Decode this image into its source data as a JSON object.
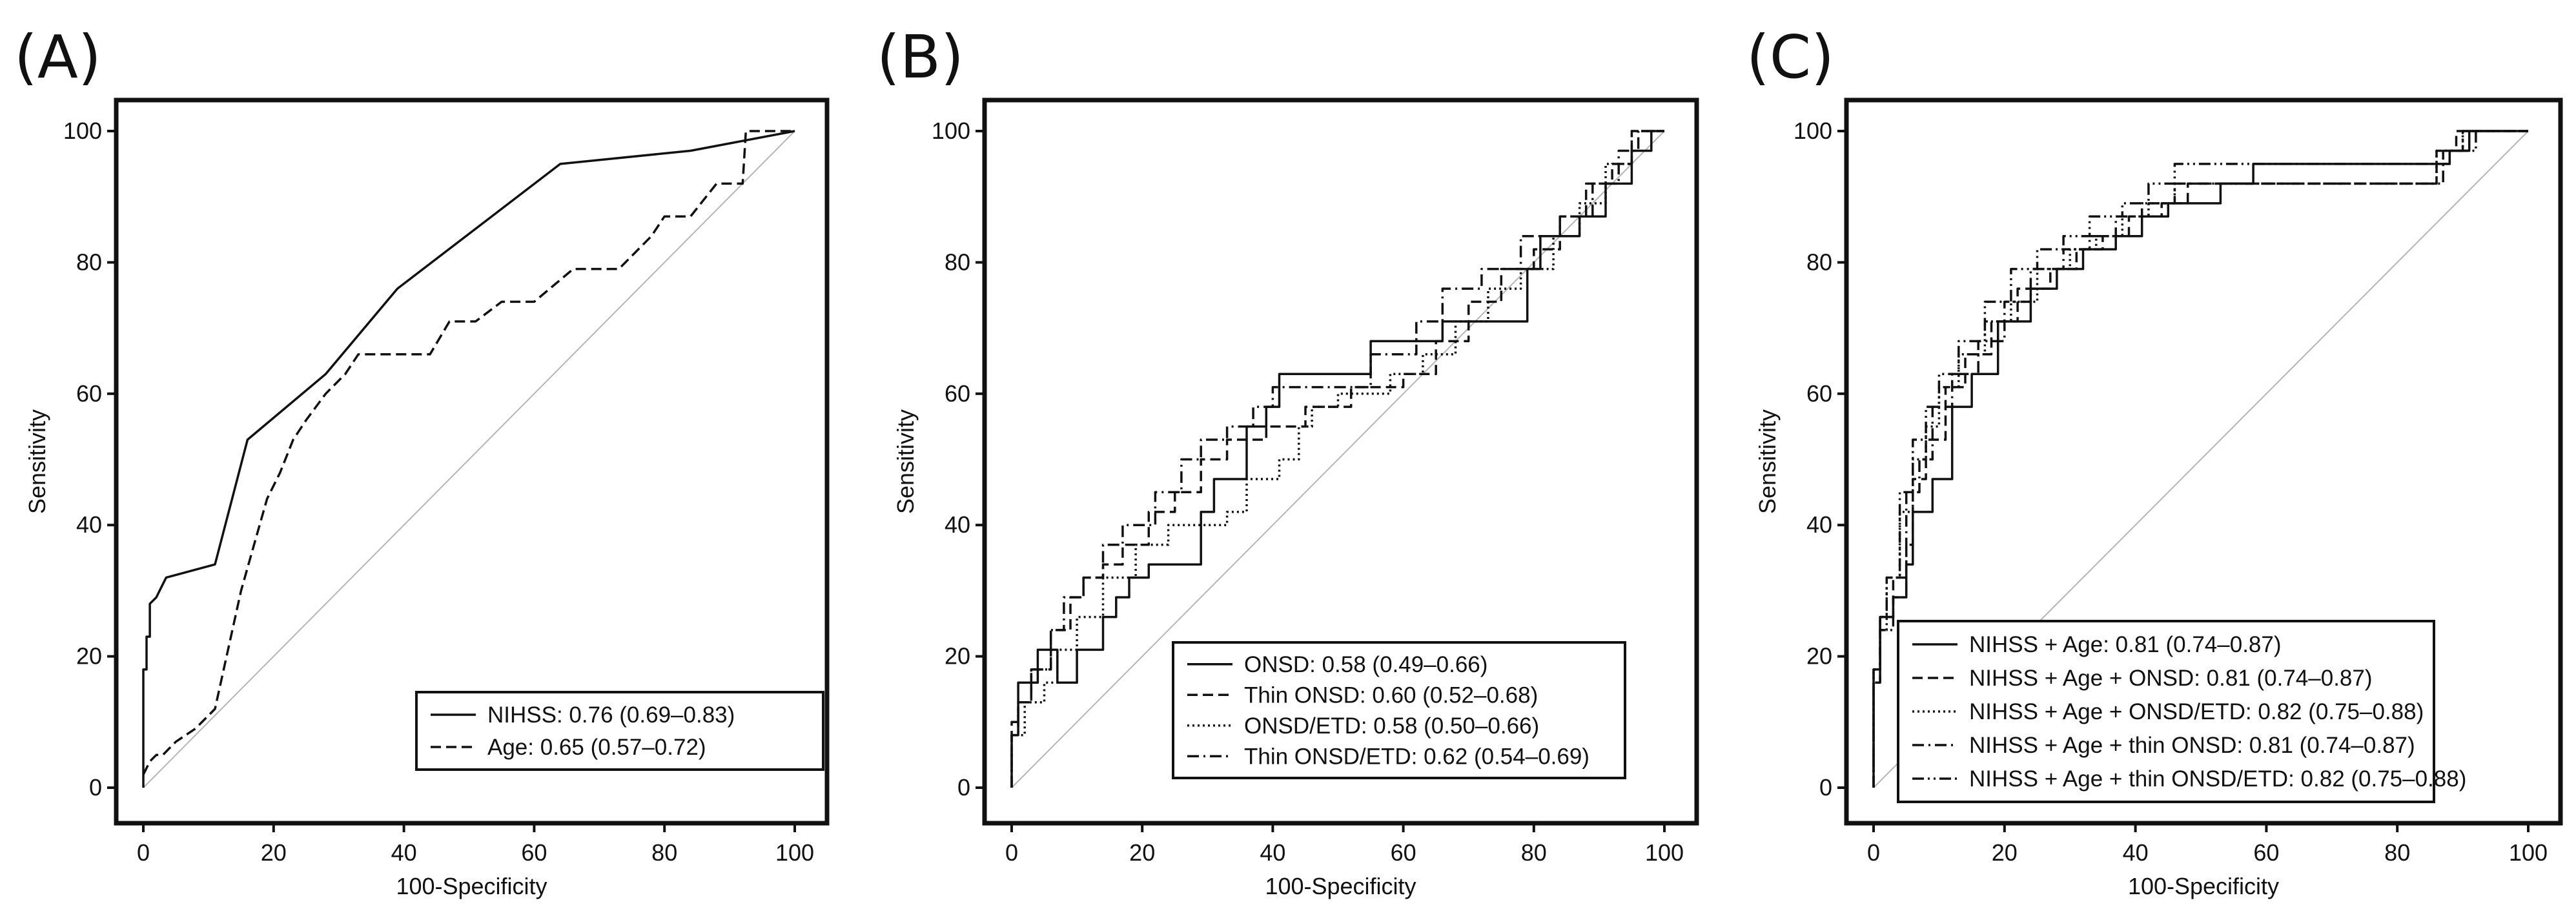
{
  "chart_data": [
    {
      "type": "line",
      "panel_label": "(A)",
      "xlabel": "100-Specificity",
      "ylabel": "Sensitivity",
      "xlim": [
        0,
        100
      ],
      "ylim": [
        0,
        100
      ],
      "xticks": [
        "0",
        "20",
        "40",
        "60",
        "80",
        "100"
      ],
      "yticks": [
        "0",
        "20",
        "40",
        "60",
        "80",
        "100"
      ],
      "legend_position": "bottom-right",
      "diagonal_reference": true,
      "series": [
        {
          "name": "NIHSS",
          "auc_label": "NIHSS: 0.76 (0.69–0.83)",
          "style": "solid",
          "x": [
            0,
            0,
            0.5,
            0.5,
            1,
            1,
            2,
            2.5,
            3,
            3.5,
            11,
            16,
            28,
            39,
            64,
            84,
            100
          ],
          "y": [
            0,
            18,
            18,
            23,
            23,
            28,
            29,
            30,
            31,
            32,
            34,
            53,
            63,
            76,
            95,
            97,
            100
          ]
        },
        {
          "name": "Age",
          "auc_label": "Age: 0.65 (0.57–0.72)",
          "style": "dashed",
          "x": [
            0,
            1,
            2,
            3,
            5,
            8,
            11,
            13,
            15,
            17,
            19,
            21,
            23,
            25,
            28,
            31,
            33,
            44,
            47,
            51,
            55,
            60,
            66,
            73,
            78,
            80,
            84,
            88,
            92,
            92.5,
            97,
            100
          ],
          "y": [
            2,
            4,
            5,
            5,
            7,
            9,
            12,
            21,
            30,
            37,
            44,
            48,
            53,
            56,
            60,
            63,
            66,
            66,
            71,
            71,
            74,
            74,
            79,
            79,
            84,
            87,
            87,
            92,
            92,
            100,
            100,
            100
          ]
        }
      ]
    },
    {
      "type": "line",
      "panel_label": "(B)",
      "xlabel": "100-Specificity",
      "ylabel": "Sensitivity",
      "xlim": [
        0,
        100
      ],
      "ylim": [
        0,
        100
      ],
      "xticks": [
        "0",
        "20",
        "40",
        "60",
        "80",
        "100"
      ],
      "yticks": [
        "0",
        "20",
        "40",
        "60",
        "80",
        "100"
      ],
      "legend_position": "bottom-right",
      "diagonal_reference": true,
      "series": [
        {
          "name": "ONSD",
          "auc_label": "ONSD: 0.58 (0.49–0.66)",
          "style": "solid",
          "x": [
            0,
            0,
            1,
            1,
            4,
            4,
            7,
            7,
            10,
            10,
            14,
            14,
            16,
            16,
            18,
            18,
            21,
            21,
            29,
            29,
            31,
            31,
            36,
            36,
            39,
            39,
            41,
            41,
            45,
            45,
            55,
            55,
            61,
            61,
            66,
            66,
            79,
            79,
            81,
            81,
            87,
            87,
            91,
            91,
            95,
            95,
            98,
            98,
            100
          ],
          "y": [
            0,
            8,
            8,
            16,
            16,
            21,
            21,
            16,
            16,
            21,
            21,
            26,
            26,
            29,
            29,
            32,
            32,
            34,
            34,
            42,
            42,
            47,
            47,
            55,
            55,
            58,
            58,
            63,
            63,
            63,
            63,
            68,
            68,
            68,
            68,
            71,
            71,
            79,
            79,
            84,
            84,
            87,
            87,
            92,
            92,
            97,
            97,
            100,
            100
          ]
        },
        {
          "name": "Thin ONSD",
          "auc_label": "Thin ONSD: 0.60 (0.52–0.68)",
          "style": "dashed",
          "x": [
            0,
            0,
            1,
            1,
            3,
            3,
            6,
            6,
            9,
            9,
            11,
            11,
            14,
            14,
            17,
            17,
            21,
            21,
            25,
            25,
            29,
            29,
            33,
            33,
            39,
            39,
            45,
            45,
            52,
            52,
            60,
            60,
            65,
            65,
            70,
            70,
            75,
            75,
            80,
            80,
            84,
            84,
            88,
            88,
            92,
            92,
            95,
            95,
            100
          ],
          "y": [
            0,
            10,
            10,
            13,
            13,
            18,
            18,
            24,
            24,
            29,
            29,
            32,
            32,
            34,
            34,
            37,
            37,
            42,
            42,
            45,
            45,
            50,
            50,
            53,
            53,
            55,
            55,
            58,
            58,
            61,
            61,
            63,
            63,
            68,
            68,
            74,
            74,
            79,
            79,
            82,
            82,
            87,
            87,
            92,
            92,
            95,
            95,
            100,
            100
          ]
        },
        {
          "name": "ONSD/ETD",
          "auc_label": "ONSD/ETD: 0.58 (0.50–0.66)",
          "style": "dotted",
          "x": [
            0,
            0,
            2,
            2,
            5,
            5,
            7,
            7,
            10,
            10,
            14,
            14,
            19,
            19,
            24,
            24,
            33,
            33,
            36,
            36,
            41,
            41,
            44,
            44,
            46,
            46,
            50,
            50,
            58,
            58,
            63,
            63,
            68,
            68,
            73,
            73,
            78,
            78,
            83,
            83,
            87,
            87,
            91,
            91,
            95,
            95,
            100
          ],
          "y": [
            0,
            8,
            8,
            13,
            13,
            16,
            16,
            21,
            21,
            26,
            26,
            32,
            32,
            37,
            37,
            40,
            40,
            42,
            42,
            47,
            47,
            50,
            50,
            55,
            55,
            58,
            58,
            60,
            60,
            63,
            63,
            66,
            66,
            71,
            71,
            76,
            76,
            79,
            79,
            84,
            84,
            89,
            89,
            95,
            95,
            100,
            100
          ]
        },
        {
          "name": "Thin ONSD/ETD",
          "auc_label": "Thin ONSD/ETD: 0.62 (0.54–0.69)",
          "style": "dashdot",
          "x": [
            0,
            0,
            1,
            1,
            3,
            3,
            6,
            6,
            8,
            8,
            11,
            11,
            14,
            14,
            17,
            17,
            22,
            22,
            26,
            26,
            29,
            29,
            33,
            33,
            37,
            37,
            40,
            40,
            47,
            47,
            55,
            55,
            62,
            62,
            66,
            66,
            72,
            72,
            78,
            78,
            84,
            84,
            89,
            89,
            93,
            93,
            96,
            96,
            100
          ],
          "y": [
            0,
            8,
            8,
            13,
            13,
            18,
            18,
            24,
            24,
            29,
            29,
            32,
            32,
            37,
            37,
            40,
            40,
            45,
            45,
            50,
            50,
            53,
            53,
            55,
            55,
            58,
            58,
            61,
            61,
            61,
            61,
            66,
            66,
            71,
            71,
            76,
            76,
            79,
            79,
            84,
            84,
            87,
            87,
            92,
            92,
            97,
            97,
            100,
            100
          ]
        }
      ]
    },
    {
      "type": "line",
      "panel_label": "(C)",
      "xlabel": "100-Specificity",
      "ylabel": "Sensitivity",
      "xlim": [
        0,
        100
      ],
      "ylim": [
        0,
        100
      ],
      "xticks": [
        "0",
        "20",
        "40",
        "60",
        "80",
        "100"
      ],
      "yticks": [
        "0",
        "20",
        "40",
        "60",
        "80",
        "100"
      ],
      "legend_position": "bottom-right",
      "diagonal_reference": true,
      "series": [
        {
          "name": "NIHSS + Age",
          "auc_label": "NIHSS + Age: 0.81 (0.74–0.87)",
          "style": "solid",
          "x": [
            0,
            0,
            1,
            1,
            3,
            3,
            5,
            5,
            6,
            6,
            9,
            9,
            12,
            12,
            15,
            15,
            19,
            19,
            24,
            24,
            28,
            28,
            32,
            32,
            37,
            37,
            41,
            41,
            45,
            45,
            53,
            53,
            58,
            58,
            88,
            88,
            91,
            91,
            100
          ],
          "y": [
            0,
            18,
            18,
            26,
            26,
            29,
            29,
            34,
            34,
            42,
            42,
            47,
            47,
            58,
            58,
            63,
            63,
            71,
            71,
            76,
            76,
            79,
            79,
            82,
            82,
            84,
            84,
            87,
            87,
            89,
            89,
            92,
            92,
            95,
            95,
            97,
            97,
            100,
            100
          ]
        },
        {
          "name": "NIHSS + Age + ONSD",
          "auc_label": "NIHSS + Age + ONSD: 0.81 (0.74–0.87)",
          "style": "dashed",
          "x": [
            0,
            0,
            1,
            1,
            3,
            3,
            5,
            5,
            6,
            6,
            8,
            8,
            11,
            11,
            14,
            14,
            18,
            18,
            22,
            22,
            27,
            27,
            31,
            31,
            35,
            35,
            39,
            39,
            44,
            44,
            48,
            48,
            86,
            86,
            89,
            89,
            100
          ],
          "y": [
            0,
            16,
            16,
            26,
            26,
            32,
            32,
            37,
            37,
            47,
            47,
            53,
            53,
            61,
            61,
            66,
            66,
            71,
            71,
            76,
            76,
            79,
            79,
            82,
            82,
            84,
            84,
            87,
            87,
            89,
            89,
            92,
            92,
            97,
            97,
            100,
            100
          ]
        },
        {
          "name": "NIHSS + Age + ONSD/ETD",
          "auc_label": "NIHSS + Age + ONSD/ETD: 0.82 (0.75–0.88)",
          "style": "dotted",
          "x": [
            0,
            0,
            1,
            1,
            2,
            2,
            4,
            4,
            6,
            6,
            8,
            8,
            10,
            10,
            13,
            13,
            17,
            17,
            21,
            21,
            25,
            25,
            30,
            30,
            34,
            34,
            38,
            38,
            42,
            42,
            46,
            46,
            70,
            70,
            86,
            86,
            90,
            90,
            100
          ],
          "y": [
            0,
            18,
            18,
            24,
            24,
            32,
            32,
            42,
            42,
            50,
            50,
            55,
            55,
            61,
            61,
            66,
            66,
            71,
            71,
            74,
            74,
            79,
            79,
            82,
            82,
            84,
            84,
            87,
            87,
            89,
            89,
            92,
            92,
            92,
            92,
            97,
            97,
            100,
            100
          ]
        },
        {
          "name": "NIHSS + Age + thin ONSD",
          "auc_label": "NIHSS + Age + thin ONSD: 0.81 (0.74–0.87)",
          "style": "dashdot",
          "x": [
            0,
            0,
            1,
            1,
            3,
            3,
            5,
            5,
            7,
            7,
            9,
            9,
            12,
            12,
            16,
            16,
            20,
            20,
            24,
            24,
            29,
            29,
            33,
            33,
            37,
            37,
            41,
            41,
            46,
            46,
            87,
            87,
            90,
            90,
            100
          ],
          "y": [
            0,
            16,
            16,
            24,
            24,
            29,
            29,
            45,
            45,
            50,
            50,
            58,
            58,
            63,
            63,
            68,
            68,
            74,
            74,
            79,
            79,
            82,
            82,
            84,
            84,
            87,
            87,
            89,
            89,
            92,
            92,
            97,
            97,
            100,
            100
          ]
        },
        {
          "name": "NIHSS + Age + thin ONSD/ETD",
          "auc_label": "NIHSS + Age + thin ONSD/ETD: 0.82 (0.75–0.88)",
          "style": "dashdotdot",
          "x": [
            0,
            0,
            1,
            1,
            2,
            2,
            4,
            4,
            6,
            6,
            8,
            8,
            10,
            10,
            13,
            13,
            17,
            17,
            21,
            21,
            25,
            25,
            29,
            29,
            33,
            33,
            38,
            38,
            42,
            42,
            46,
            46,
            88,
            88,
            92,
            92,
            100
          ],
          "y": [
            0,
            18,
            18,
            26,
            26,
            32,
            32,
            45,
            45,
            53,
            53,
            58,
            58,
            63,
            63,
            68,
            68,
            74,
            74,
            79,
            79,
            82,
            82,
            84,
            84,
            87,
            87,
            89,
            89,
            92,
            92,
            95,
            95,
            97,
            97,
            100,
            100
          ]
        }
      ]
    }
  ]
}
